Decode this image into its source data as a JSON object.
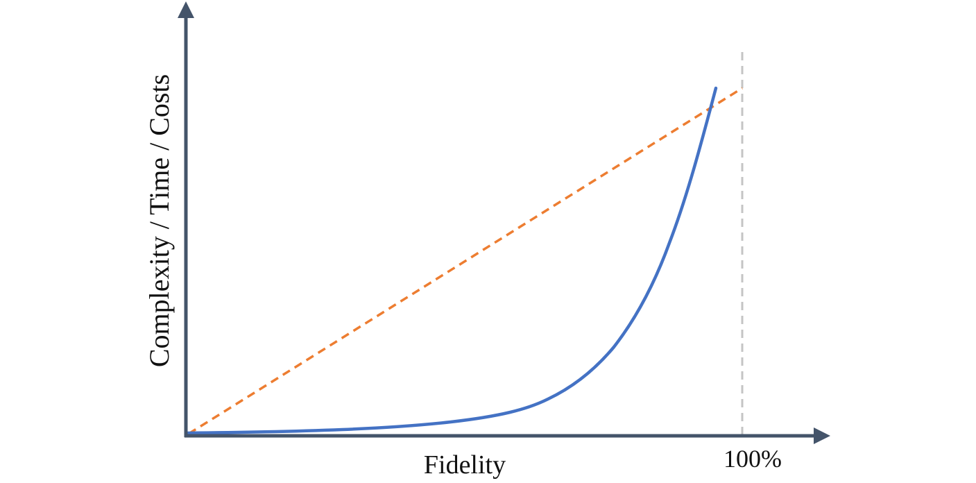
{
  "diagram": {
    "y_axis_label": "Complexity / Time / Costs",
    "x_axis_label": "Fidelity",
    "limit_label": "100%"
  }
}
